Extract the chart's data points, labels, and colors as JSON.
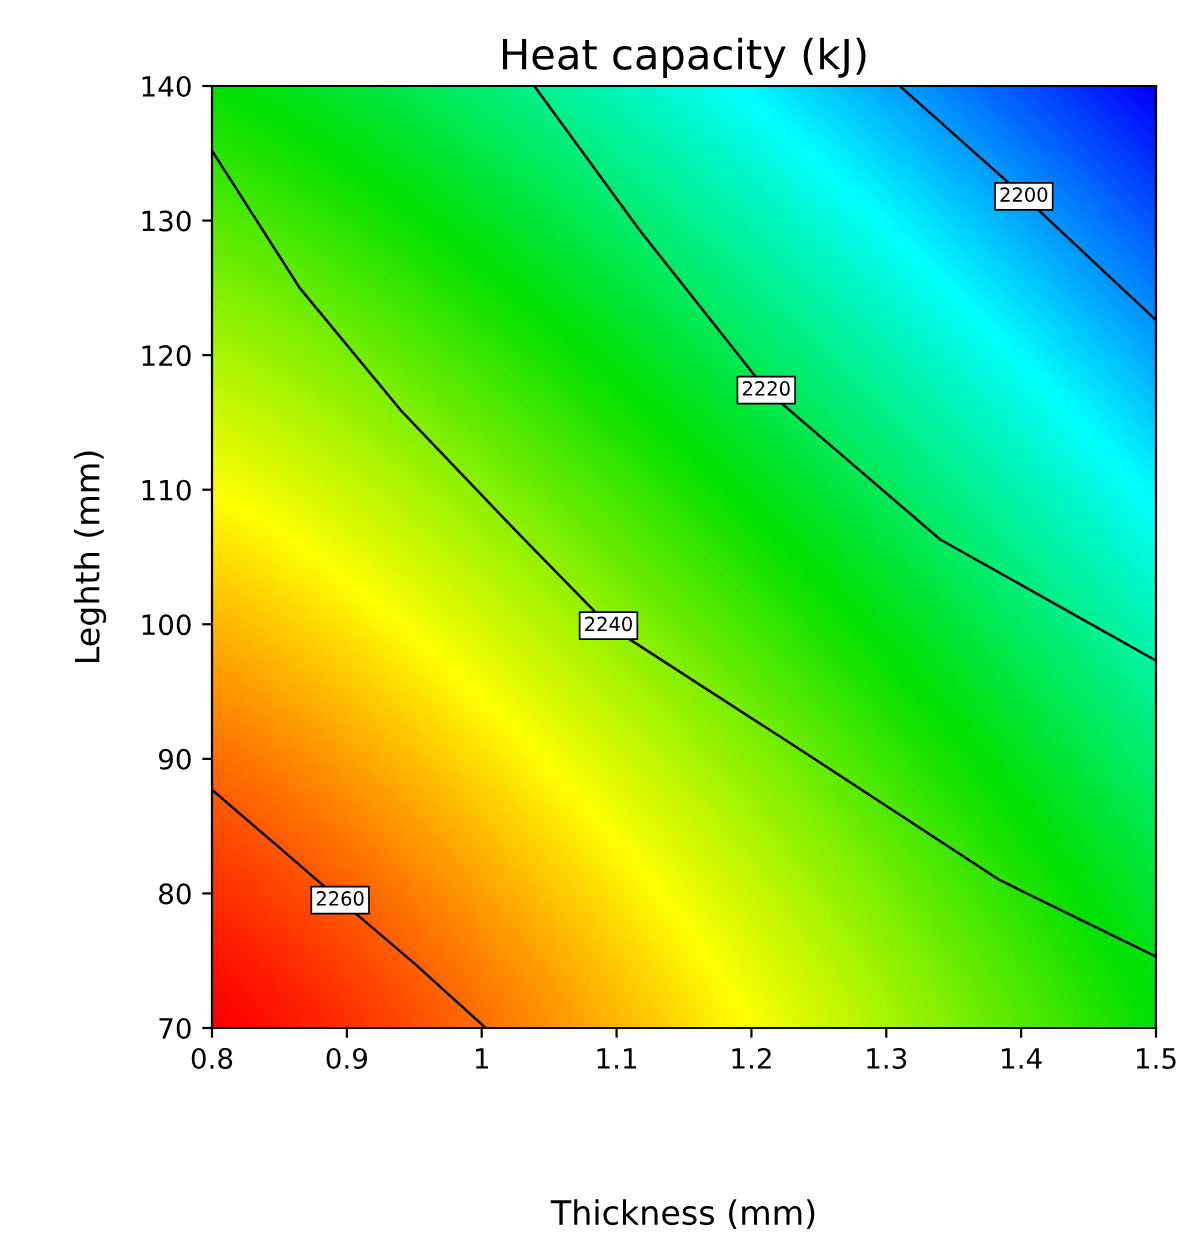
{
  "chart_data": {
    "type": "line",
    "title": "Heat capacity (kJ)",
    "xlabel": "Thickness (mm)",
    "ylabel": "Leghth (mm)",
    "xlim": [
      0.8,
      1.5
    ],
    "xticks": [
      0.8,
      0.9,
      1,
      1.1,
      1.2,
      1.3,
      1.4,
      1.5
    ],
    "ylim": [
      70,
      140
    ],
    "yticks": [
      70,
      80,
      90,
      100,
      110,
      120,
      130,
      140
    ],
    "marker": "none",
    "line_style": "solid",
    "series": [
      {
        "color": "#000000",
        "x": [
          0.8,
          0.85,
          0.895,
          0.95,
          1.003
        ],
        "values": [
          87.7,
          83.4,
          79.5,
          74.8,
          70
        ]
      },
      {
        "color": "#000000",
        "x": [
          0.8,
          0.865,
          0.94,
          1.02,
          1.094,
          1.236,
          1.384,
          1.5
        ],
        "values": [
          135.2,
          125,
          115.9,
          107.5,
          99.9,
          90.7,
          81,
          75.3
        ]
      },
      {
        "color": "#000000",
        "x": [
          1.039,
          1.117,
          1.211,
          1.34,
          1.5
        ],
        "values": [
          140,
          129.3,
          117.4,
          106.3,
          97.3
        ]
      },
      {
        "color": "#000000",
        "x": [
          1.31,
          1.402,
          1.5
        ],
        "values": [
          140,
          131.8,
          122.6
        ]
      }
    ],
    "annotations": [
      {
        "text": "2260",
        "x": 0.895,
        "y": 79.5
      },
      {
        "text": "2240",
        "x": 1.094,
        "y": 99.9
      },
      {
        "text": "2220",
        "x": 1.211,
        "y": 117.4
      },
      {
        "text": "2200",
        "x": 1.402,
        "y": 131.8
      }
    ]
  }
}
